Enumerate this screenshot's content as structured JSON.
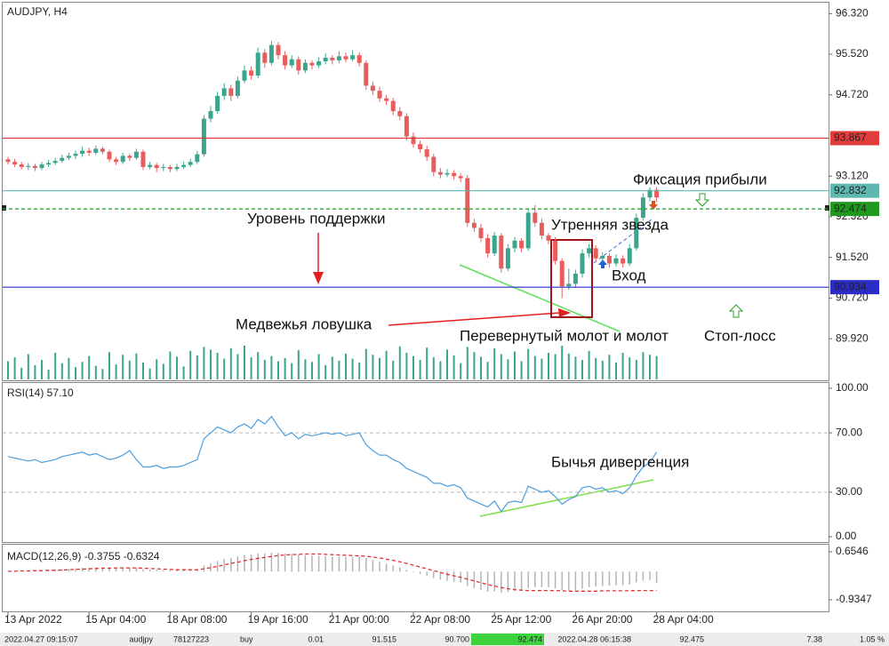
{
  "chart_data": [
    {
      "type": "candlestick",
      "title": "AUDJPY, H4",
      "categories": [
        "13 Apr 2022",
        null,
        null,
        null,
        null,
        null,
        null,
        null,
        null,
        null,
        null,
        null,
        "15 Apr 04:00",
        null,
        null,
        null,
        null,
        null,
        null,
        null,
        null,
        null,
        null,
        null,
        "18 Apr 08:00",
        null,
        null,
        null,
        null,
        null,
        null,
        null,
        null,
        null,
        null,
        null,
        "19 Apr 16:00",
        null,
        null,
        null,
        null,
        null,
        null,
        null,
        null,
        null,
        null,
        null,
        "21 Apr 00:00",
        null,
        null,
        null,
        null,
        null,
        null,
        null,
        null,
        null,
        null,
        null,
        "22 Apr 08:00",
        null,
        null,
        null,
        null,
        null,
        null,
        null,
        null,
        null,
        null,
        null,
        "25 Apr 12:00",
        null,
        null,
        null,
        null,
        null,
        null,
        null,
        null,
        null,
        null,
        null,
        "26 Apr 20:00",
        null,
        null,
        null,
        null,
        null,
        null,
        null,
        null,
        null,
        null,
        null,
        "28 Apr 04:00"
      ],
      "ohlc": [
        [
          93.45,
          93.5,
          93.35,
          93.4
        ],
        [
          93.4,
          93.46,
          93.3,
          93.35
        ],
        [
          93.35,
          93.4,
          93.25,
          93.3
        ],
        [
          93.3,
          93.38,
          93.24,
          93.32
        ],
        [
          93.32,
          93.36,
          93.22,
          93.28
        ],
        [
          93.28,
          93.4,
          93.24,
          93.35
        ],
        [
          93.35,
          93.44,
          93.3,
          93.38
        ],
        [
          93.38,
          93.48,
          93.34,
          93.42
        ],
        [
          93.42,
          93.54,
          93.38,
          93.48
        ],
        [
          93.48,
          93.58,
          93.44,
          93.52
        ],
        [
          93.52,
          93.62,
          93.46,
          93.56
        ],
        [
          93.56,
          93.7,
          93.5,
          93.62
        ],
        [
          93.62,
          93.68,
          93.52,
          93.58
        ],
        [
          93.58,
          93.72,
          93.54,
          93.66
        ],
        [
          93.66,
          93.7,
          93.55,
          93.6
        ],
        [
          93.6,
          93.64,
          93.4,
          93.45
        ],
        [
          93.45,
          93.5,
          93.34,
          93.4
        ],
        [
          93.4,
          93.58,
          93.36,
          93.52
        ],
        [
          93.52,
          93.56,
          93.42,
          93.48
        ],
        [
          93.48,
          93.66,
          93.44,
          93.6
        ],
        [
          93.6,
          93.64,
          93.24,
          93.3
        ],
        [
          93.3,
          93.4,
          93.26,
          93.34
        ],
        [
          93.34,
          93.38,
          93.2,
          93.28
        ],
        [
          93.28,
          93.36,
          93.22,
          93.3
        ],
        [
          93.3,
          93.34,
          93.2,
          93.26
        ],
        [
          93.26,
          93.36,
          93.22,
          93.3
        ],
        [
          93.3,
          93.4,
          93.26,
          93.34
        ],
        [
          93.34,
          93.46,
          93.3,
          93.4
        ],
        [
          93.4,
          93.62,
          93.36,
          93.55
        ],
        [
          93.55,
          94.32,
          93.5,
          94.25
        ],
        [
          94.25,
          94.5,
          94.18,
          94.4
        ],
        [
          94.4,
          94.78,
          94.35,
          94.7
        ],
        [
          94.7,
          94.95,
          94.62,
          94.85
        ],
        [
          94.85,
          94.92,
          94.6,
          94.7
        ],
        [
          94.7,
          95.08,
          94.65,
          95.0
        ],
        [
          95.0,
          95.3,
          94.95,
          95.2
        ],
        [
          95.2,
          95.28,
          95.02,
          95.1
        ],
        [
          95.1,
          95.65,
          95.05,
          95.55
        ],
        [
          95.55,
          95.62,
          95.25,
          95.35
        ],
        [
          95.35,
          95.78,
          95.3,
          95.7
        ],
        [
          95.7,
          95.76,
          95.42,
          95.5
        ],
        [
          95.5,
          95.58,
          95.22,
          95.3
        ],
        [
          95.3,
          95.5,
          95.25,
          95.42
        ],
        [
          95.42,
          95.48,
          95.12,
          95.2
        ],
        [
          95.2,
          95.42,
          95.15,
          95.35
        ],
        [
          95.35,
          95.4,
          95.22,
          95.3
        ],
        [
          95.3,
          95.46,
          95.25,
          95.38
        ],
        [
          95.38,
          95.54,
          95.32,
          95.45
        ],
        [
          95.45,
          95.5,
          95.32,
          95.4
        ],
        [
          95.4,
          95.58,
          95.35,
          95.48
        ],
        [
          95.48,
          95.55,
          95.36,
          95.42
        ],
        [
          95.42,
          95.6,
          95.38,
          95.5
        ],
        [
          95.5,
          95.56,
          95.28,
          95.35
        ],
        [
          95.35,
          95.4,
          94.82,
          94.9
        ],
        [
          94.9,
          94.98,
          94.72,
          94.8
        ],
        [
          94.8,
          94.88,
          94.58,
          94.65
        ],
        [
          94.65,
          94.72,
          94.52,
          94.6
        ],
        [
          94.6,
          94.66,
          94.32,
          94.4
        ],
        [
          94.4,
          94.48,
          94.22,
          94.3
        ],
        [
          94.3,
          94.36,
          93.82,
          93.9
        ],
        [
          93.9,
          93.98,
          93.68,
          93.75
        ],
        [
          93.75,
          93.82,
          93.58,
          93.65
        ],
        [
          93.65,
          93.72,
          93.42,
          93.5
        ],
        [
          93.5,
          93.56,
          93.12,
          93.2
        ],
        [
          93.2,
          93.28,
          93.08,
          93.15
        ],
        [
          93.15,
          93.26,
          93.1,
          93.18
        ],
        [
          93.18,
          93.24,
          93.05,
          93.12
        ],
        [
          93.12,
          93.18,
          93.0,
          93.08
        ],
        [
          93.08,
          93.14,
          92.12,
          92.2
        ],
        [
          92.2,
          92.28,
          92.02,
          92.1
        ],
        [
          92.1,
          92.18,
          91.82,
          91.9
        ],
        [
          91.9,
          91.98,
          91.52,
          91.6
        ],
        [
          91.6,
          92.02,
          91.55,
          91.95
        ],
        [
          91.95,
          92.0,
          91.22,
          91.3
        ],
        [
          91.3,
          91.78,
          91.25,
          91.7
        ],
        [
          91.7,
          91.92,
          91.62,
          91.85
        ],
        [
          91.85,
          91.9,
          91.62,
          91.7
        ],
        [
          91.7,
          92.48,
          91.65,
          92.4
        ],
        [
          92.4,
          92.55,
          92.12,
          92.2
        ],
        [
          92.2,
          92.28,
          91.88,
          91.95
        ],
        [
          91.95,
          92.0,
          91.78,
          91.85
        ],
        [
          91.85,
          91.92,
          91.38,
          91.45
        ],
        [
          91.45,
          91.5,
          90.72,
          90.95
        ],
        [
          90.95,
          91.3,
          90.88,
          91.0
        ],
        [
          91.0,
          91.28,
          90.92,
          91.2
        ],
        [
          91.2,
          91.68,
          91.12,
          91.6
        ],
        [
          91.6,
          91.78,
          91.52,
          91.7
        ],
        [
          91.7,
          91.76,
          91.44,
          91.5
        ],
        [
          91.5,
          91.62,
          91.42,
          91.55
        ],
        [
          91.55,
          91.6,
          91.32,
          91.4
        ],
        [
          91.4,
          91.58,
          91.34,
          91.5
        ],
        [
          91.5,
          91.56,
          91.32,
          91.4
        ],
        [
          91.4,
          91.78,
          91.35,
          91.7
        ],
        [
          91.7,
          92.38,
          91.65,
          92.3
        ],
        [
          92.3,
          92.78,
          92.25,
          92.7
        ],
        [
          92.7,
          92.9,
          92.62,
          92.85
        ],
        [
          92.85,
          92.9,
          92.62,
          92.7
        ]
      ],
      "up_color": "#3aa58d",
      "down_color": "#e85c5c",
      "volume": [
        2800,
        3400,
        1800,
        3900,
        2200,
        3000,
        1500,
        4100,
        2500,
        3300,
        1900,
        2700,
        3600,
        2100,
        1600,
        4200,
        2300,
        3800,
        2900,
        4000,
        2600,
        1700,
        3100,
        2400,
        4300,
        3500,
        2000,
        4400,
        3700,
        5000,
        4600,
        4100,
        3200,
        4800,
        3900,
        5200,
        3400,
        4200,
        3000,
        3600,
        2800,
        3300,
        2500,
        4500,
        3100,
        2700,
        3900,
        2200,
        3500,
        2900,
        4000,
        3200,
        2600,
        4700,
        3800,
        3300,
        4400,
        2900,
        5100,
        4100,
        3600,
        3000,
        4900,
        3400,
        2800,
        4600,
        3700,
        2500,
        5000,
        4200,
        3500,
        2700,
        4800,
        3900,
        3100,
        4300,
        2800,
        4700,
        3600,
        3200,
        4100,
        3900,
        5200,
        4000,
        3500,
        3000,
        4400,
        3300,
        2900,
        3800,
        2600,
        4100,
        3400,
        3000,
        4200,
        3800,
        3600
      ],
      "volume_color": "#3aa58d",
      "ylim": [
        89.1,
        96.5
      ],
      "yticks": [
        {
          "value": 96.32,
          "label": "96.320"
        },
        {
          "value": 95.52,
          "label": "95.520"
        },
        {
          "value": 94.72,
          "label": "94.720"
        },
        {
          "value": 93.12,
          "label": "93.120"
        },
        {
          "value": 92.32,
          "label": "92.320"
        },
        {
          "value": 91.52,
          "label": "91.520"
        },
        {
          "value": 90.72,
          "label": "90.720"
        },
        {
          "value": 89.92,
          "label": "89.920"
        }
      ],
      "levels": [
        {
          "value": 93.867,
          "color": "#e03c3c",
          "style": "solid"
        },
        {
          "value": 92.832,
          "color": "#5fb8b0",
          "style": "solid"
        },
        {
          "value": 92.474,
          "color": "#1f9a1f",
          "style": "dashed"
        },
        {
          "value": 90.934,
          "color": "#2b2bc8",
          "style": "solid"
        }
      ],
      "annotations": [
        "Уровень поддержки",
        "Медвежья ловушка",
        "Перевернутый молот и молот",
        "Утренняя звезда",
        "Вход",
        "Фиксация прибыли",
        "Стоп-лосс"
      ]
    },
    {
      "type": "line",
      "title": "RSI(14) 57.10",
      "values": [
        54,
        53,
        52,
        51,
        52,
        50,
        51,
        52,
        54,
        55,
        56,
        57,
        55,
        56,
        54,
        52,
        53,
        55,
        58,
        52,
        47,
        47,
        48,
        46,
        47,
        47,
        48,
        50,
        52,
        66,
        70,
        74,
        72,
        70,
        74,
        76,
        73,
        79,
        76,
        81,
        74,
        68,
        70,
        66,
        69,
        68,
        69,
        70,
        69,
        70,
        68,
        69,
        70,
        62,
        58,
        55,
        55,
        52,
        50,
        46,
        44,
        42,
        40,
        36,
        36,
        34,
        35,
        33,
        26,
        24,
        22,
        20,
        24,
        17,
        23,
        24,
        23,
        34,
        32,
        30,
        31,
        27,
        22,
        25,
        27,
        33,
        34,
        32,
        33,
        30,
        31,
        29,
        33,
        41,
        47,
        50,
        57
      ],
      "color": "#4a9ee0",
      "ylim": [
        -4.2,
        104.2
      ],
      "yticks": [
        {
          "value": 100,
          "label": "100.00"
        },
        {
          "value": 70,
          "label": "70.00"
        },
        {
          "value": 30,
          "label": "30.00"
        },
        {
          "value": 0,
          "label": "0.00"
        }
      ],
      "levels": [
        70,
        30
      ],
      "annotations": [
        "Бычья дивергенция"
      ]
    },
    {
      "type": "macd",
      "title": "MACD(12,26,9) -0.3755 -0.6324",
      "histogram": [
        0.02,
        0.03,
        0.03,
        0.04,
        0.04,
        0.05,
        0.06,
        0.07,
        0.08,
        0.09,
        0.1,
        0.12,
        0.13,
        0.14,
        0.14,
        0.13,
        0.12,
        0.12,
        0.13,
        0.12,
        0.08,
        0.07,
        0.06,
        0.05,
        0.04,
        0.04,
        0.05,
        0.06,
        0.08,
        0.2,
        0.28,
        0.36,
        0.42,
        0.45,
        0.5,
        0.55,
        0.56,
        0.6,
        0.6,
        0.63,
        0.62,
        0.6,
        0.59,
        0.56,
        0.55,
        0.53,
        0.52,
        0.51,
        0.5,
        0.5,
        0.49,
        0.49,
        0.48,
        0.45,
        0.38,
        0.32,
        0.26,
        0.2,
        0.14,
        0.06,
        -0.02,
        -0.08,
        -0.14,
        -0.22,
        -0.27,
        -0.31,
        -0.34,
        -0.37,
        -0.48,
        -0.55,
        -0.61,
        -0.67,
        -0.66,
        -0.7,
        -0.68,
        -0.65,
        -0.62,
        -0.55,
        -0.52,
        -0.52,
        -0.52,
        -0.55,
        -0.62,
        -0.63,
        -0.62,
        -0.57,
        -0.52,
        -0.5,
        -0.48,
        -0.47,
        -0.46,
        -0.45,
        -0.43,
        -0.36,
        -0.3,
        -0.28,
        -0.38
      ],
      "signal": [
        0.01,
        0.01,
        0.02,
        0.02,
        0.03,
        0.03,
        0.04,
        0.04,
        0.05,
        0.06,
        0.07,
        0.08,
        0.09,
        0.1,
        0.11,
        0.11,
        0.12,
        0.12,
        0.12,
        0.12,
        0.11,
        0.1,
        0.09,
        0.08,
        0.07,
        0.06,
        0.06,
        0.06,
        0.06,
        0.09,
        0.13,
        0.17,
        0.22,
        0.27,
        0.31,
        0.36,
        0.4,
        0.44,
        0.47,
        0.5,
        0.53,
        0.55,
        0.56,
        0.57,
        0.58,
        0.58,
        0.58,
        0.57,
        0.56,
        0.55,
        0.54,
        0.53,
        0.52,
        0.51,
        0.48,
        0.45,
        0.41,
        0.37,
        0.32,
        0.27,
        0.21,
        0.15,
        0.09,
        0.03,
        -0.03,
        -0.09,
        -0.14,
        -0.19,
        -0.25,
        -0.31,
        -0.37,
        -0.43,
        -0.48,
        -0.53,
        -0.57,
        -0.6,
        -0.62,
        -0.63,
        -0.63,
        -0.63,
        -0.63,
        -0.63,
        -0.64,
        -0.65,
        -0.65,
        -0.65,
        -0.65,
        -0.65,
        -0.64,
        -0.64,
        -0.64,
        -0.64,
        -0.64,
        -0.63,
        -0.63,
        -0.63,
        -0.63
      ],
      "hist_color": "#b4b4b4",
      "signal_color": "#e03030",
      "ylim": [
        -1.32,
        0.89
      ],
      "yticks": [
        0.6546,
        -0.9347
      ]
    }
  ],
  "status_bar": [
    "2022.04.27 09:15:07",
    "audjpy",
    "78127223",
    "buy",
    "0.01",
    "91.515",
    "90.700",
    "92.474",
    "2022.04.28 06:15:38",
    "92.475",
    "7.38",
    "1.05 %"
  ]
}
